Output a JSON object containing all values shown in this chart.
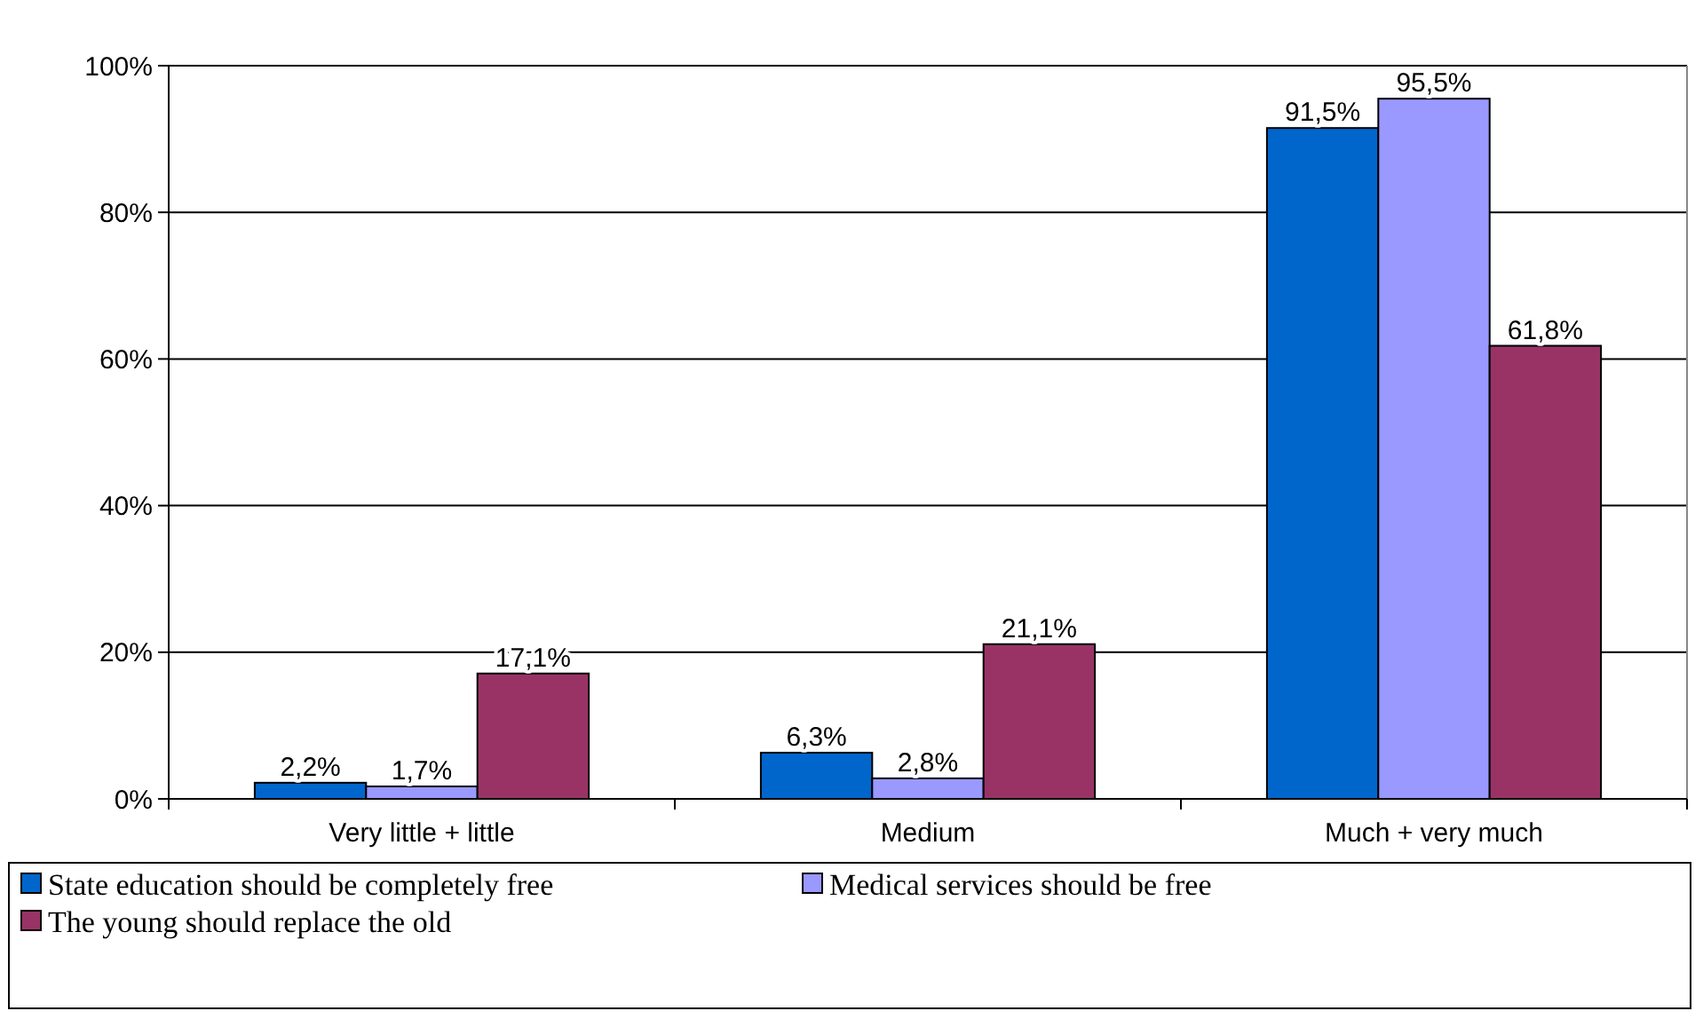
{
  "chart_data": {
    "type": "bar",
    "categories": [
      "Very little + little",
      "Medium",
      "Much + very much"
    ],
    "series": [
      {
        "name": "State education should be completely free",
        "color": "#0066cc",
        "values": [
          2.2,
          6.3,
          91.5
        ],
        "value_labels": [
          "2,2%",
          "6,3%",
          "91,5%"
        ]
      },
      {
        "name": "Medical services should be free",
        "color": "#9999ff",
        "values": [
          1.7,
          2.8,
          95.5
        ],
        "value_labels": [
          "1,7%",
          "2,8%",
          "95,5%"
        ]
      },
      {
        "name": "The young should replace the old",
        "color": "#993366",
        "values": [
          17.1,
          21.1,
          61.8
        ],
        "value_labels": [
          "17,1%",
          "21,1%",
          "61,8%"
        ]
      }
    ],
    "ylim": [
      0,
      100
    ],
    "yticks": [
      {
        "value": 0,
        "label": "0%"
      },
      {
        "value": 20,
        "label": "20%"
      },
      {
        "value": 40,
        "label": "40%"
      },
      {
        "value": 60,
        "label": "60%"
      },
      {
        "value": 80,
        "label": "80%"
      },
      {
        "value": 100,
        "label": "100%"
      }
    ],
    "grid": "y",
    "legend": "bottom"
  }
}
